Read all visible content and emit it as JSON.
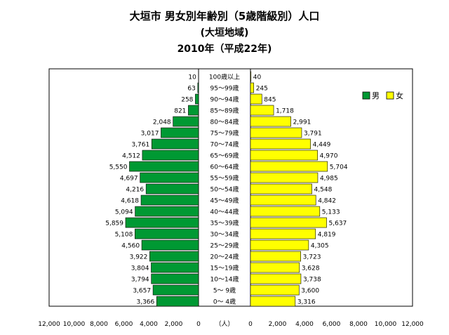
{
  "chart_data": {
    "type": "bar",
    "title": "大垣市 男女別年齢別（5歳階級別）人口",
    "subtitle_1": "(大垣地域)",
    "subtitle_2": "2010年（平成22年)",
    "categories": [
      "100歳以上",
      "95～99歳",
      "90～94歳",
      "85～89歳",
      "80～84歳",
      "75～79歳",
      "70～74歳",
      "65～69歳",
      "60～64歳",
      "55～59歳",
      "50～54歳",
      "45～49歳",
      "40～44歳",
      "35～39歳",
      "30～34歳",
      "25～29歳",
      "20～24歳",
      "15～19歳",
      "10～14歳",
      "5～ 9歳",
      "0～ 4歳"
    ],
    "series": [
      {
        "name": "男",
        "color": "#009933",
        "values": [
          10,
          63,
          258,
          821,
          2048,
          3017,
          3761,
          4512,
          5550,
          4697,
          4216,
          4618,
          5094,
          5859,
          5108,
          4560,
          3922,
          3804,
          3794,
          3657,
          3366
        ]
      },
      {
        "name": "女",
        "color": "#ffff00",
        "values": [
          40,
          245,
          845,
          1718,
          2991,
          3791,
          4449,
          4970,
          5704,
          4985,
          4548,
          4842,
          5133,
          5637,
          4819,
          4305,
          3723,
          3628,
          3738,
          3600,
          3316
        ]
      }
    ],
    "value_labels": {
      "male": [
        "10",
        "63",
        "258",
        "821",
        "2,048",
        "3,017",
        "3,761",
        "4,512",
        "5,550",
        "4,697",
        "4,216",
        "4,618",
        "5,094",
        "5,859",
        "5,108",
        "4,560",
        "3,922",
        "3,804",
        "3,794",
        "3,657",
        "3,366"
      ],
      "female": [
        "40",
        "245",
        "845",
        "1,718",
        "2,991",
        "3,791",
        "4,449",
        "4,970",
        "5,704",
        "4,985",
        "4,548",
        "4,842",
        "5,133",
        "5,637",
        "4,819",
        "4,305",
        "3,723",
        "3,628",
        "3,738",
        "3,600",
        "3,316"
      ]
    },
    "x_ticks_left": [
      "12,000",
      "10,000",
      "8,000",
      "6,000",
      "4,000",
      "2,000",
      "0"
    ],
    "x_ticks_right": [
      "0",
      "2,000",
      "4,000",
      "6,000",
      "8,000",
      "10,000",
      "12,000"
    ],
    "xlabel": "（人）",
    "xlim": [
      0,
      12000
    ],
    "legend": [
      {
        "label": "男"
      },
      {
        "label": "女"
      }
    ],
    "legend_position": "top-right",
    "grid": false
  }
}
